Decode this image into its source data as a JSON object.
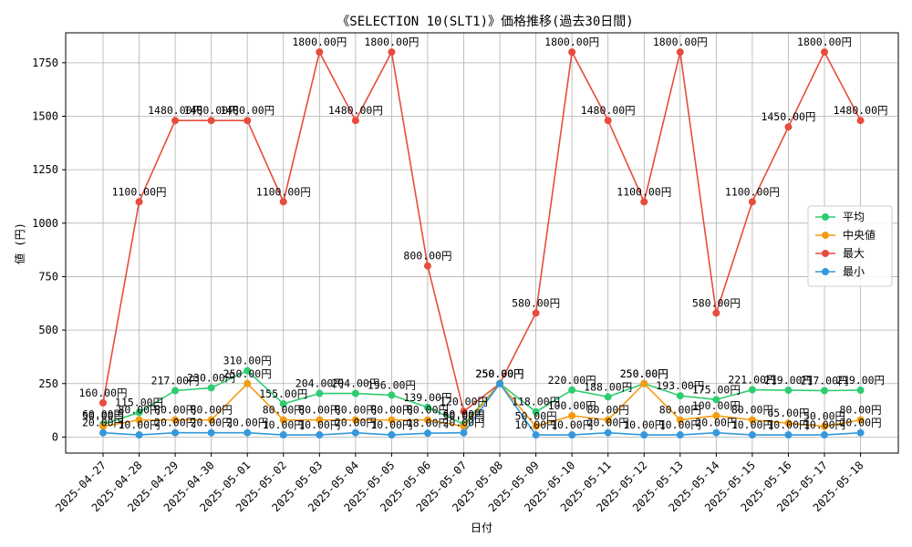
{
  "chart_data": {
    "type": "line",
    "title": "《SELECTION 10(SLT1)》価格推移(過去30日間)",
    "xlabel": "日付",
    "ylabel": "値 (円)",
    "ylim": [
      -75,
      1890
    ],
    "yticks": [
      0,
      250,
      500,
      750,
      1000,
      1250,
      1500,
      1750
    ],
    "grid": true,
    "legend_position": "center-right",
    "value_suffix": "円",
    "categories": [
      "2025-04-27",
      "2025-04-28",
      "2025-04-29",
      "2025-04-30",
      "2025-05-01",
      "2025-05-02",
      "2025-05-03",
      "2025-05-04",
      "2025-05-05",
      "2025-05-06",
      "2025-05-07",
      "2025-05-08",
      "2025-05-09",
      "2025-05-10",
      "2025-05-11",
      "2025-05-12",
      "2025-05-13",
      "2025-05-14",
      "2025-05-15",
      "2025-05-16",
      "2025-05-17",
      "2025-05-18"
    ],
    "series": [
      {
        "name": "平均",
        "color": "#2ecc71",
        "values": [
          60,
          115,
          217,
          230,
          310,
          155,
          204,
          204,
          196,
          139,
          60,
          250,
          118,
          220,
          188,
          250,
          193,
          175,
          221,
          219,
          217,
          219
        ]
      },
      {
        "name": "中央値",
        "color": "#f39c12",
        "values": [
          50,
          80,
          80,
          80,
          250,
          80,
          80,
          80,
          80,
          80,
          50,
          250,
          50,
          100,
          80,
          250,
          80,
          100,
          80,
          65,
          50,
          80
        ]
      },
      {
        "name": "最大",
        "color": "#e74c3c",
        "values": [
          160,
          1100,
          1480,
          1480,
          1480,
          1100,
          1800,
          1480,
          1800,
          800,
          120,
          250,
          580,
          1800,
          1480,
          1100,
          1800,
          580,
          1100,
          1450,
          1800,
          1480
        ]
      },
      {
        "name": "最小",
        "color": "#3498db",
        "values": [
          20,
          10,
          20,
          20,
          20,
          10,
          10,
          20,
          10,
          18,
          20,
          250,
          10,
          10,
          20,
          10,
          10,
          20,
          10,
          10,
          10,
          20
        ]
      }
    ]
  }
}
